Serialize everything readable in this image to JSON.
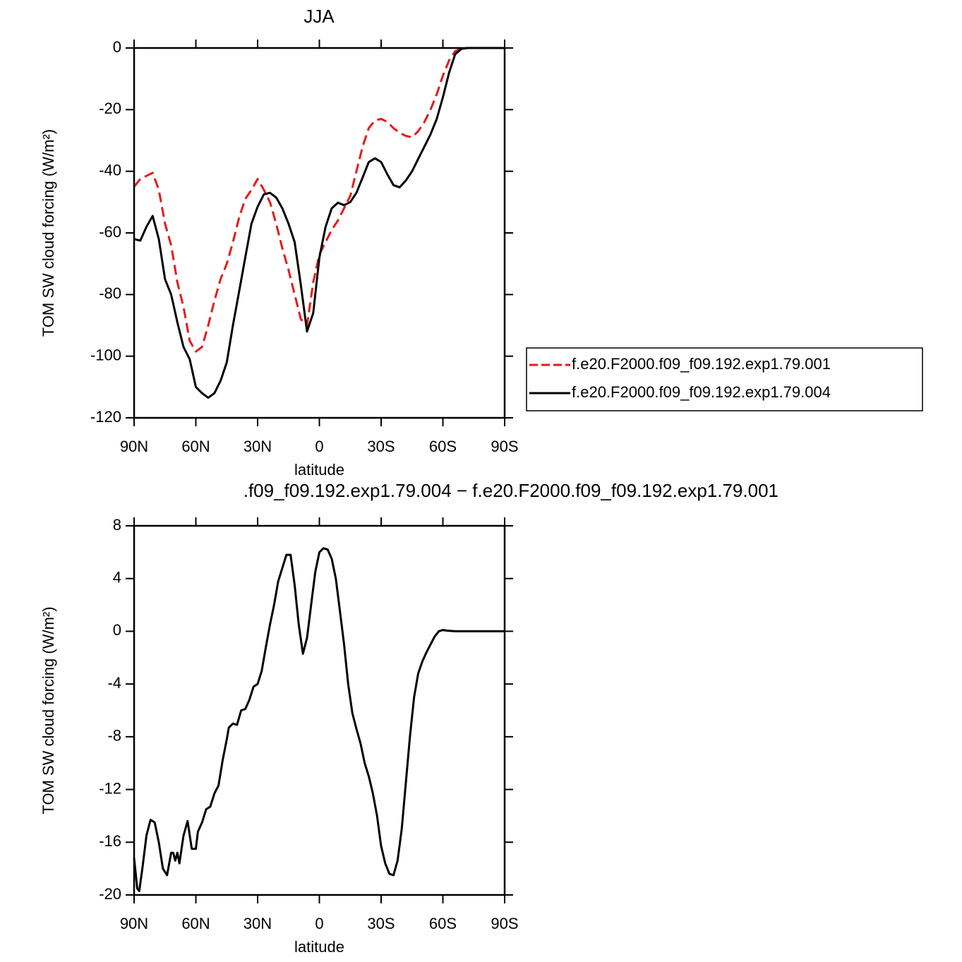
{
  "chart_data": [
    {
      "type": "line",
      "title": "JJA",
      "xlabel": "latitude",
      "ylabel": "TOM SW cloud forcing (W/m²)",
      "legend": "right",
      "x": [
        90,
        87,
        84,
        81,
        78,
        75,
        72,
        69,
        66,
        63,
        60,
        57,
        54,
        51,
        48,
        45,
        42,
        39,
        36,
        33,
        30,
        27,
        24,
        21,
        18,
        15,
        12,
        9,
        6,
        3,
        0,
        -3,
        -6,
        -9,
        -12,
        -15,
        -18,
        -21,
        -24,
        -27,
        -30,
        -33,
        -36,
        -39,
        -42,
        -45,
        -48,
        -51,
        -54,
        -57,
        -60,
        -63,
        -66,
        -69,
        -72,
        -75,
        -78,
        -81,
        -84,
        -87,
        -90
      ],
      "xlim": [
        90,
        -90
      ],
      "xticks": [
        {
          "value": 90,
          "label": "90N"
        },
        {
          "value": 60,
          "label": "60N"
        },
        {
          "value": 30,
          "label": "30N"
        },
        0,
        {
          "value": -30,
          "label": "30S"
        },
        {
          "value": -60,
          "label": "60S"
        },
        {
          "value": -90,
          "label": "90S"
        }
      ],
      "ylim": [
        -120,
        0
      ],
      "yticks": [
        0,
        -20,
        -40,
        -60,
        -80,
        -100,
        -120
      ],
      "series": [
        {
          "name": "f.e20.F2000.f09_f09.192.exp1.79.001",
          "color": "#e8191c",
          "dashed": true,
          "values": [
            -45,
            -42.5,
            -41.5,
            -40.5,
            -46,
            -57,
            -64,
            -76,
            -84,
            -95,
            -98.5,
            -97,
            -90,
            -82,
            -75,
            -70,
            -63,
            -55,
            -49,
            -46,
            -42.5,
            -46,
            -50,
            -57,
            -65,
            -72,
            -80,
            -88,
            -90,
            -76,
            -67,
            -63,
            -59,
            -56,
            -52,
            -48,
            -40,
            -32,
            -26,
            -23.5,
            -23,
            -24,
            -26,
            -27.5,
            -28.5,
            -29,
            -27,
            -24,
            -20,
            -15,
            -9,
            -4,
            -1,
            -0.2,
            0,
            0,
            0,
            0,
            0,
            0,
            0
          ]
        },
        {
          "name": "f.e20.F2000.f09_f09.192.exp1.79.004",
          "color": "#000000",
          "dashed": false,
          "values": [
            -62,
            -62.5,
            -58,
            -54.5,
            -62,
            -75,
            -80,
            -89,
            -97,
            -101,
            -110,
            -112,
            -113.5,
            -112,
            -108,
            -102,
            -90,
            -79,
            -68,
            -57,
            -51.5,
            -47.5,
            -47,
            -48.5,
            -52,
            -57,
            -63,
            -77,
            -92,
            -86,
            -68,
            -58,
            -52,
            -50.2,
            -51,
            -50,
            -47,
            -42,
            -37,
            -35.8,
            -37,
            -41,
            -44.5,
            -45.2,
            -43,
            -40,
            -36,
            -32,
            -28,
            -23,
            -16,
            -8,
            -2,
            -0.3,
            0,
            0,
            0,
            0,
            0,
            0,
            0
          ]
        }
      ]
    },
    {
      "type": "line",
      "title": ".f09_f09.192.exp1.79.004 − f.e20.F2000.f09_f09.192.exp1.79.001",
      "xlabel": "latitude",
      "ylabel": "TOM SW cloud forcing (W/m²)",
      "x": [
        90,
        88.5,
        87.5,
        86,
        84,
        82,
        80,
        78,
        76,
        74,
        72,
        71,
        70,
        69,
        68,
        66,
        64,
        62,
        60,
        59,
        57,
        55,
        53,
        51,
        49,
        47,
        45,
        44,
        42,
        40,
        38,
        36,
        34,
        32,
        30,
        28,
        26,
        24,
        22,
        20,
        18,
        16,
        14,
        12,
        10,
        8,
        6,
        4,
        2,
        0,
        -2,
        -4,
        -6,
        -8,
        -10,
        -12,
        -14,
        -16,
        -18,
        -20,
        -22,
        -24,
        -26,
        -28,
        -30,
        -32,
        -34,
        -36,
        -38,
        -40,
        -42,
        -44,
        -46,
        -48,
        -50,
        -52,
        -54,
        -56,
        -58,
        -60,
        -62,
        -66,
        -90
      ],
      "xlim": [
        90,
        -90
      ],
      "xticks": [
        {
          "value": 90,
          "label": "90N"
        },
        {
          "value": 60,
          "label": "60N"
        },
        {
          "value": 30,
          "label": "30N"
        },
        0,
        {
          "value": -30,
          "label": "30S"
        },
        {
          "value": -60,
          "label": "60S"
        },
        {
          "value": -90,
          "label": "90S"
        }
      ],
      "ylim": [
        -20,
        8
      ],
      "yticks": [
        8,
        4,
        0,
        -4,
        -8,
        -12,
        -16,
        -20
      ],
      "series": [
        {
          "color": "#000000",
          "dashed": false,
          "values": [
            -17.2,
            -19.5,
            -19.7,
            -18,
            -15.5,
            -14.3,
            -14.5,
            -16,
            -18,
            -18.5,
            -16.8,
            -16.8,
            -17.4,
            -16.8,
            -17.6,
            -15.5,
            -14.4,
            -16.5,
            -16.5,
            -15.2,
            -14.5,
            -13.5,
            -13.3,
            -12.3,
            -11.7,
            -9.8,
            -8.2,
            -7.3,
            -7,
            -7.1,
            -6,
            -5.9,
            -5.2,
            -4.2,
            -4,
            -3,
            -1.2,
            0.5,
            2,
            3.8,
            4.8,
            5.8,
            5.8,
            3.5,
            0.5,
            -1.7,
            -0.5,
            2,
            4.5,
            6,
            6.3,
            6.2,
            5.5,
            4,
            1.5,
            -1,
            -4,
            -6.2,
            -7.4,
            -8.5,
            -10,
            -11,
            -12.3,
            -14,
            -16.3,
            -17.6,
            -18.4,
            -18.5,
            -17.4,
            -15,
            -11.5,
            -8,
            -5,
            -3.2,
            -2.3,
            -1.6,
            -1,
            -0.4,
            0,
            0.1,
            0.05,
            0,
            0
          ]
        }
      ]
    }
  ]
}
